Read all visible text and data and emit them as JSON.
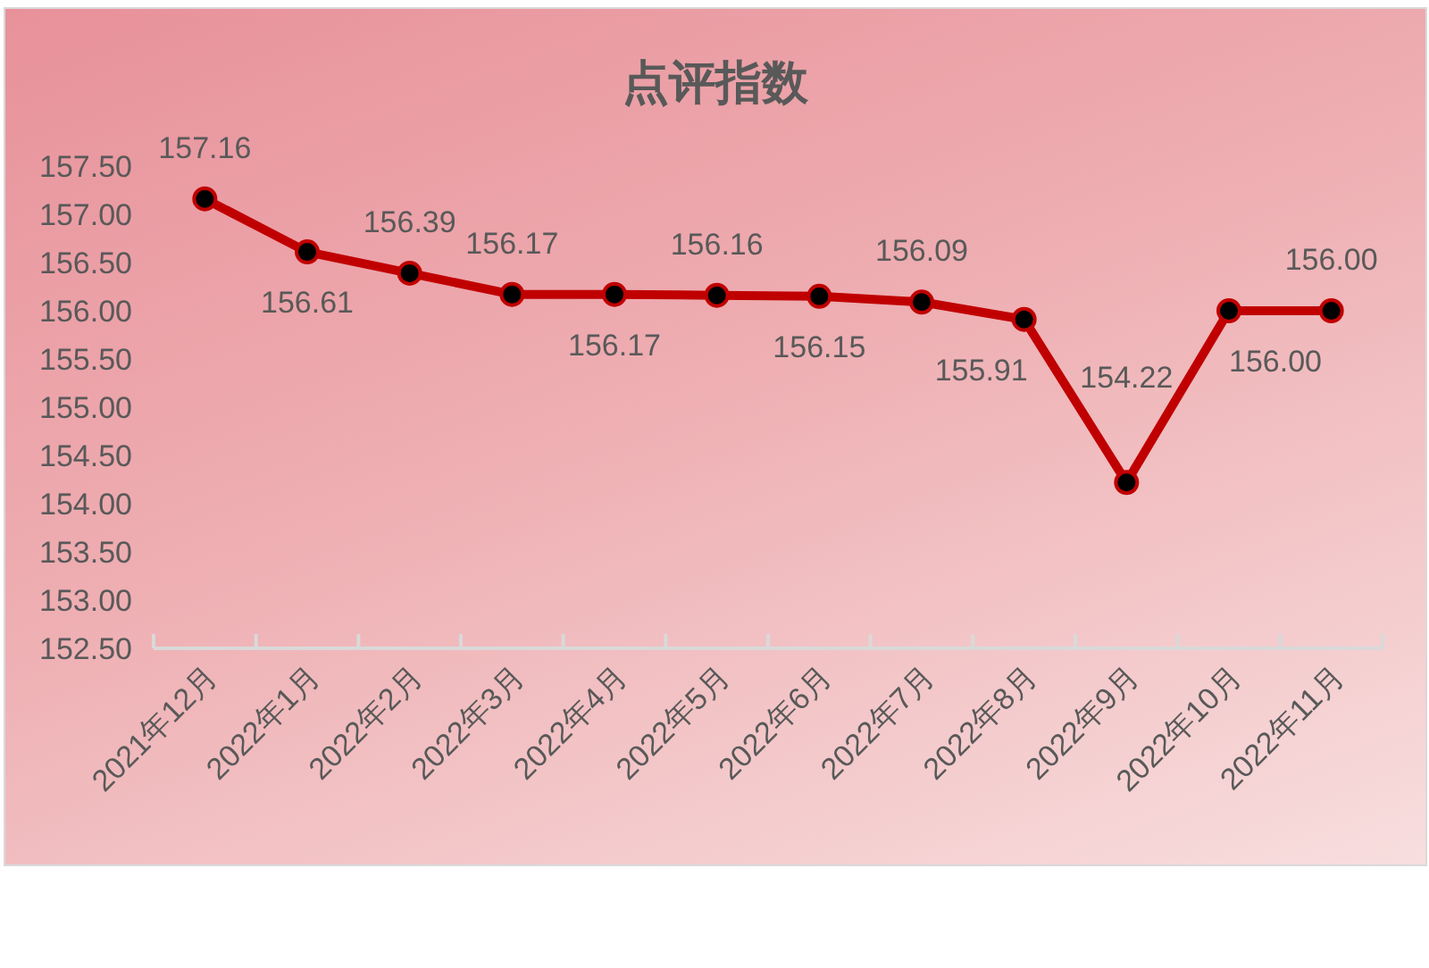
{
  "chart_data": {
    "type": "line",
    "title": "点评指数",
    "categories": [
      "2021年12月",
      "2022年1月",
      "2022年2月",
      "2022年3月",
      "2022年4月",
      "2022年5月",
      "2022年6月",
      "2022年7月",
      "2022年8月",
      "2022年9月",
      "2022年10月",
      "2022年11月"
    ],
    "values": [
      157.16,
      156.61,
      156.39,
      156.17,
      156.17,
      156.16,
      156.15,
      156.09,
      155.91,
      154.22,
      156.0,
      156.0
    ],
    "value_labels": [
      "157.16",
      "156.61",
      "156.39",
      "156.17",
      "156.17",
      "156.16",
      "156.15",
      "156.09",
      "155.91",
      "154.22",
      "156.00",
      "156.00"
    ],
    "color": "#c00000",
    "marker": "circle",
    "line_style": "solid",
    "ylim": [
      152.5,
      157.5
    ],
    "yticks": [
      {
        "value": 152.5,
        "label": "152.50"
      },
      {
        "value": 153,
        "label": "153.00"
      },
      {
        "value": 153.5,
        "label": "153.50"
      },
      {
        "value": 154,
        "label": "154.00"
      },
      {
        "value": 154.5,
        "label": "154.50"
      },
      {
        "value": 155,
        "label": "155.00"
      },
      {
        "value": 155.5,
        "label": "155.50"
      },
      {
        "value": 156,
        "label": "156.00"
      },
      {
        "value": 156.5,
        "label": "156.50"
      },
      {
        "value": 157,
        "label": "157.00"
      },
      {
        "value": 157.5,
        "label": "157.50"
      }
    ]
  }
}
